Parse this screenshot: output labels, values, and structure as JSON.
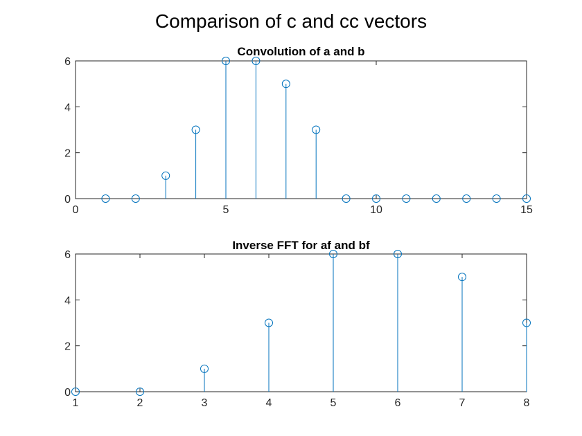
{
  "figure": {
    "title": "Comparison of c and cc vectors"
  },
  "colors": {
    "stem": "#0072BD",
    "axes": "#262626",
    "background": "#ffffff"
  },
  "chart_data": [
    {
      "type": "stem",
      "title": "Convolution of a and b",
      "xlabel": "",
      "ylabel": "",
      "x": [
        1,
        2,
        3,
        4,
        5,
        6,
        7,
        8,
        9,
        10,
        11,
        12,
        13,
        14,
        15
      ],
      "values": [
        0,
        0,
        1,
        3,
        6,
        6,
        5,
        3,
        0,
        0,
        0,
        0,
        0,
        0,
        0
      ],
      "xlim": [
        0,
        15
      ],
      "ylim": [
        0,
        6
      ],
      "xticks": [
        0,
        5,
        10,
        15
      ],
      "yticks": [
        0,
        2,
        4,
        6
      ],
      "grid": false,
      "marker": "circle-open"
    },
    {
      "type": "stem",
      "title": "Inverse FFT for af and bf",
      "xlabel": "",
      "ylabel": "",
      "x": [
        1,
        2,
        3,
        4,
        5,
        6,
        7,
        8
      ],
      "values": [
        0,
        0,
        1,
        3,
        6,
        6,
        5,
        3
      ],
      "xlim": [
        1,
        8
      ],
      "ylim": [
        0,
        6
      ],
      "xticks": [
        1,
        2,
        3,
        4,
        5,
        6,
        7,
        8
      ],
      "yticks": [
        0,
        2,
        4,
        6
      ],
      "grid": false,
      "marker": "circle-open"
    }
  ]
}
